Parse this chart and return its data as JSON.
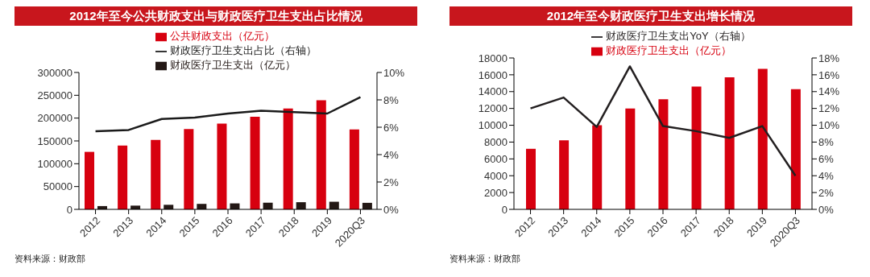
{
  "chart_data": [
    {
      "type": "bar",
      "title": "2012年至今公共财政支出与财政医疗卫生支出占比情况",
      "categories": [
        "2012",
        "2013",
        "2014",
        "2015",
        "2016",
        "2017",
        "2018",
        "2019",
        "2020Q3"
      ],
      "series": [
        {
          "name": "公共财政支出（亿元）",
          "color": "#d7000f",
          "values": [
            126000,
            140000,
            152000,
            176000,
            188000,
            203000,
            221000,
            239000,
            175000
          ]
        },
        {
          "name": "财政医疗卫生支出（亿元）",
          "color": "#231815",
          "values": [
            7200,
            8200,
            10000,
            12000,
            13100,
            14600,
            15700,
            16700,
            14300
          ]
        },
        {
          "name": "财政医疗卫生支出占比（右轴）",
          "type": "line",
          "axis": "y2",
          "color": "#1a1a1a",
          "values": [
            5.7,
            5.8,
            6.6,
            6.7,
            7.0,
            7.2,
            7.1,
            7.0,
            8.2
          ]
        }
      ],
      "ylim": [
        0,
        300000
      ],
      "yticks": [
        0,
        50000,
        100000,
        150000,
        200000,
        250000,
        300000
      ],
      "y2lim": [
        0,
        10
      ],
      "y2ticks": [
        {
          "value": 0,
          "label": "0%"
        },
        {
          "value": 2,
          "label": "2%"
        },
        {
          "value": 4,
          "label": "4%"
        },
        {
          "value": 6,
          "label": "6%"
        },
        {
          "value": 8,
          "label": "8%"
        },
        {
          "value": 10,
          "label": "10%"
        }
      ],
      "grid": false,
      "legend": "top",
      "marker": "none",
      "annotations": [
        "资料来源：财政部"
      ]
    },
    {
      "type": "bar",
      "title": "2012年至今财政医疗卫生支出增长情况",
      "categories": [
        "2012",
        "2013",
        "2014",
        "2015",
        "2016",
        "2017",
        "2018",
        "2019",
        "2020Q3"
      ],
      "series": [
        {
          "name": "财政医疗卫生支出（亿元）",
          "color": "#d7000f",
          "values": [
            7200,
            8200,
            10000,
            12000,
            13100,
            14600,
            15700,
            16700,
            14300
          ]
        },
        {
          "name": "财政医疗卫生支出YoY（右轴）",
          "type": "line",
          "axis": "y2",
          "color": "#231f20",
          "values": [
            12.0,
            13.3,
            9.8,
            17.0,
            9.9,
            9.3,
            8.5,
            9.9,
            4.0
          ]
        }
      ],
      "ylim": [
        0,
        18000
      ],
      "yticks": [
        0,
        2000,
        4000,
        6000,
        8000,
        10000,
        12000,
        14000,
        16000,
        18000
      ],
      "y2lim": [
        0,
        18
      ],
      "y2ticks": [
        {
          "value": 0,
          "label": "0%"
        },
        {
          "value": 2,
          "label": "2%"
        },
        {
          "value": 4,
          "label": "4%"
        },
        {
          "value": 6,
          "label": "6%"
        },
        {
          "value": 8,
          "label": "8%"
        },
        {
          "value": 10,
          "label": "10%"
        },
        {
          "value": 12,
          "label": "12%"
        },
        {
          "value": 14,
          "label": "14%"
        },
        {
          "value": 16,
          "label": "16%"
        },
        {
          "value": 18,
          "label": "18%"
        }
      ],
      "grid": false,
      "legend": "top",
      "marker": "none",
      "annotations": [
        "资料来源：财政部"
      ]
    }
  ]
}
